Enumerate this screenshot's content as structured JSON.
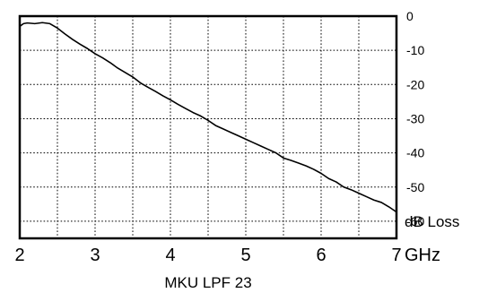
{
  "chart_data": {
    "type": "line",
    "title": "",
    "caption": "MKU LPF 23",
    "xlabel": "GHz",
    "ylabel": "dB Loss",
    "xlim": [
      2,
      7
    ],
    "ylim": [
      -65,
      0
    ],
    "y_axis_side": "right",
    "grid": true,
    "legend": "none",
    "x_ticks": [
      {
        "value": 2,
        "label": "2"
      },
      {
        "value": 3,
        "label": "3"
      },
      {
        "value": 4,
        "label": "4"
      },
      {
        "value": 5,
        "label": "5"
      },
      {
        "value": 6,
        "label": "6"
      },
      {
        "value": 7,
        "label": "7"
      }
    ],
    "y_ticks": [
      {
        "value": 0,
        "label": "0"
      },
      {
        "value": -10,
        "label": "-10"
      },
      {
        "value": -20,
        "label": "-20"
      },
      {
        "value": -30,
        "label": "-30"
      },
      {
        "value": -40,
        "label": "-40"
      },
      {
        "value": -50,
        "label": "-50"
      },
      {
        "value": -60,
        "label": "-60"
      }
    ],
    "series": [
      {
        "x": [
          2.0,
          2.05,
          2.1,
          2.2,
          2.3,
          2.4,
          2.5,
          2.6,
          2.7,
          2.8,
          2.9,
          3.0,
          3.1,
          3.2,
          3.3,
          3.4,
          3.5,
          3.6,
          3.7,
          3.8,
          3.9,
          4.0,
          4.1,
          4.2,
          4.3,
          4.4,
          4.5,
          4.6,
          4.7,
          4.8,
          4.9,
          5.0,
          5.1,
          5.2,
          5.3,
          5.4,
          5.5,
          5.6,
          5.7,
          5.8,
          5.9,
          6.0,
          6.1,
          6.2,
          6.3,
          6.4,
          6.5,
          6.6,
          6.7,
          6.8,
          6.9,
          7.0
        ],
        "values": [
          -3,
          -2.2,
          -2,
          -2.2,
          -1.9,
          -2.2,
          -3.5,
          -5.2,
          -6.8,
          -8.2,
          -9.5,
          -11.0,
          -12.2,
          -13.6,
          -15.2,
          -16.5,
          -17.8,
          -19.5,
          -20.8,
          -22.0,
          -23.3,
          -24.5,
          -25.8,
          -27.0,
          -28.2,
          -29.2,
          -30.5,
          -32.0,
          -33.0,
          -34.0,
          -35.0,
          -36.0,
          -37.0,
          -38.0,
          -39.0,
          -40.0,
          -41.5,
          -42.2,
          -43.0,
          -43.8,
          -44.8,
          -46.0,
          -47.5,
          -48.5,
          -50.0,
          -50.8,
          -51.8,
          -52.8,
          -53.8,
          -54.5,
          -55.8,
          -57.3
        ]
      }
    ],
    "colors": {
      "line": "#000000",
      "grid": "#000000",
      "background": "#ffffff"
    }
  }
}
